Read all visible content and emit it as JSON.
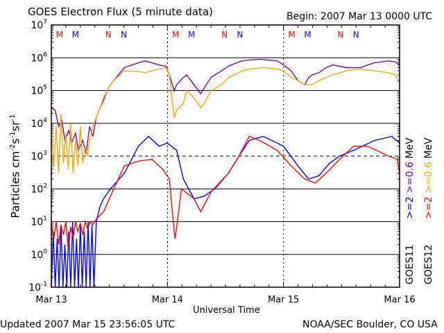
{
  "chart_data": {
    "type": "line",
    "title": "GOES Electron Flux (5 minute data)",
    "begin_label": "Begin: 2007 Mar 13 0000 UTC",
    "xlabel": "Universal Time",
    "ylabel": "Particles cm-2s-1sr-1",
    "ylabel_parts": {
      "a": "Particles cm",
      "b": "-2",
      "c": "s",
      "d": "-1",
      "e": "sr",
      "f": "-1"
    },
    "x_unit": "hours since 2007 Mar 13 00:00 UTC",
    "xlim": [
      0,
      72
    ],
    "ylim": [
      0.1,
      10000000
    ],
    "yscale": "log",
    "x_ticks": [
      {
        "x": 0,
        "label": "Mar 13"
      },
      {
        "x": 24,
        "label": "Mar 14"
      },
      {
        "x": 48,
        "label": "Mar 15"
      },
      {
        "x": 72,
        "label": "Mar 16"
      }
    ],
    "y_ticks": [
      {
        "exp": 7,
        "base": "10",
        "sup": "7"
      },
      {
        "exp": 6,
        "base": "10",
        "sup": "6"
      },
      {
        "exp": 5,
        "base": "10",
        "sup": "5"
      },
      {
        "exp": 4,
        "base": "10",
        "sup": "4"
      },
      {
        "exp": 3,
        "base": "10",
        "sup": "3"
      },
      {
        "exp": 2,
        "base": "10",
        "sup": "2"
      },
      {
        "exp": 1,
        "base": "10",
        "sup": "1"
      },
      {
        "exp": 0,
        "base": "10",
        "sup": "0"
      },
      {
        "exp": -1,
        "base": "10",
        "sup": "-1"
      }
    ],
    "threshold": 1000,
    "grid": "horizontal lines at each decade; dashed at 10^3",
    "annotations": [
      {
        "x": 1.7,
        "label": "M",
        "color": "#ff0000"
      },
      {
        "x": 5.0,
        "label": "M",
        "color": "#0000ff"
      },
      {
        "x": 11.8,
        "label": "N",
        "color": "#ff0000"
      },
      {
        "x": 15.0,
        "label": "N",
        "color": "#0000ff"
      },
      {
        "x": 25.7,
        "label": "M",
        "color": "#ff0000"
      },
      {
        "x": 29.0,
        "label": "M",
        "color": "#0000ff"
      },
      {
        "x": 35.8,
        "label": "N",
        "color": "#ff0000"
      },
      {
        "x": 39.0,
        "label": "N",
        "color": "#0000ff"
      },
      {
        "x": 49.7,
        "label": "M",
        "color": "#ff0000"
      },
      {
        "x": 53.0,
        "label": "M",
        "color": "#0000ff"
      },
      {
        "x": 59.8,
        "label": "N",
        "color": "#ff0000"
      },
      {
        "x": 63.0,
        "label": "N",
        "color": "#0000ff"
      }
    ],
    "legend": {
      "placement": "right",
      "goes11_label": "GOES11",
      "goes12_label": "GOES12",
      "goes11_ge2": ">=2",
      "goes11_ge06": ">=0.6",
      "goes12_ge2": ">=2",
      "goes12_ge06": ">=0.6",
      "unit": "MeV"
    },
    "series": [
      {
        "name": "GOES11 >=0.6 MeV",
        "color": "#6a0dad",
        "x": [
          0,
          0.8,
          1.5,
          2.2,
          2.8,
          3.6,
          4.2,
          5,
          5.6,
          6.5,
          7.2,
          7.9,
          8.6,
          9.3,
          10.1,
          10.8,
          11.5,
          12.2,
          12.9,
          15.1,
          18,
          19.4,
          20.8,
          22.3,
          23.7,
          24.4,
          25.4,
          25.9,
          27.3,
          28,
          29.5,
          30.9,
          31.6,
          33,
          33.8,
          35.2,
          36.6,
          38.8,
          39.5,
          40.9,
          43.1,
          43.8,
          46.7,
          48,
          49.6,
          51,
          52.4,
          53.2,
          53.9,
          55.3,
          56.8,
          58.2,
          59.6,
          61.1,
          63.9,
          65.4,
          66.8,
          69.7,
          71.1,
          72
        ],
        "y": [
          30000,
          25000,
          8000,
          12000,
          3000,
          6000,
          2500,
          5000,
          1500,
          3000,
          1200,
          8000,
          4000,
          15000,
          30000,
          50000,
          100000,
          150000,
          200000,
          500000,
          700000,
          800000,
          700000,
          600000,
          550000,
          300000,
          100000,
          150000,
          250000,
          300000,
          150000,
          80000,
          120000,
          250000,
          300000,
          400000,
          550000,
          750000,
          800000,
          850000,
          900000,
          880000,
          800000,
          600000,
          400000,
          200000,
          150000,
          250000,
          300000,
          350000,
          500000,
          600000,
          550000,
          500000,
          500000,
          600000,
          700000,
          800000,
          750000,
          600000
        ]
      },
      {
        "name": "GOES12 >=0.6 MeV",
        "color": "#ffa500",
        "x": [
          0,
          0.5,
          1,
          1.5,
          2,
          2.5,
          3,
          3.5,
          4,
          4.5,
          5,
          5.5,
          6,
          6.5,
          7,
          7.5,
          7.9,
          8.6,
          9.3,
          10.1,
          10.8,
          11.5,
          12.2,
          12.9,
          15.1,
          18,
          19.4,
          20.8,
          22.3,
          23.7,
          24.4,
          25.4,
          25.9,
          27.3,
          28,
          29.5,
          30.9,
          31.6,
          33,
          35.2,
          36.6,
          38.8,
          39.5,
          40.9,
          43.8,
          46.7,
          48,
          49.6,
          51,
          52.4,
          53.9,
          55.3,
          56.8,
          58.2,
          61.1,
          63.9,
          66.8,
          69.7,
          71.1,
          72
        ],
        "y": [
          10000,
          500,
          8000,
          300,
          20000,
          600,
          5000,
          400,
          10000,
          300,
          3000,
          500,
          8000,
          600,
          2000,
          1000,
          3000,
          8000,
          15000,
          30000,
          60000,
          100000,
          150000,
          200000,
          400000,
          380000,
          350000,
          400000,
          450000,
          500000,
          300000,
          15000,
          25000,
          40000,
          100000,
          60000,
          30000,
          40000,
          100000,
          150000,
          250000,
          350000,
          400000,
          450000,
          500000,
          450000,
          400000,
          250000,
          200000,
          150000,
          150000,
          200000,
          250000,
          300000,
          400000,
          450000,
          400000,
          350000,
          300000,
          200000
        ]
      },
      {
        "name": "GOES11 >=2 MeV",
        "color": "#0000ff",
        "x": [
          0,
          0.4,
          0.8,
          1.2,
          1.6,
          2,
          2.4,
          2.8,
          3.2,
          3.6,
          4,
          4.4,
          4.8,
          5.2,
          5.6,
          6,
          6.4,
          6.8,
          7.2,
          7.6,
          8,
          8.4,
          8.8,
          9.3,
          10.1,
          10.8,
          12.2,
          15.1,
          18,
          20.1,
          22.3,
          24,
          25.9,
          27.3,
          29.5,
          31.6,
          33.8,
          36.6,
          38.8,
          40.9,
          43.8,
          48,
          51,
          53.2,
          55.3,
          57.5,
          59.6,
          62.5,
          66.8,
          70.4,
          72
        ],
        "y": [
          0.1,
          5,
          0.1,
          3,
          0.1,
          8,
          0.1,
          2,
          0.1,
          5,
          0.1,
          10,
          0.1,
          3,
          0.1,
          8,
          0.1,
          5,
          0.1,
          10,
          0.1,
          8,
          0.1,
          10,
          30,
          50,
          100,
          300,
          2000,
          4000,
          2000,
          2500,
          1500,
          200,
          50,
          60,
          100,
          300,
          1000,
          3000,
          4000,
          2000,
          500,
          200,
          250,
          600,
          1000,
          1500,
          3000,
          4000,
          2500
        ]
      },
      {
        "name": "GOES12 >=2 MeV",
        "color": "#ff0000",
        "x": [
          0,
          0.5,
          1,
          1.5,
          2,
          2.5,
          3,
          3.5,
          4,
          4.5,
          5,
          5.5,
          6,
          6.5,
          7,
          7.5,
          8,
          8.6,
          9.3,
          10.8,
          12.9,
          15.1,
          18,
          20.8,
          23,
          24.4,
          25.4,
          25.6,
          26.9,
          29.5,
          30.9,
          33,
          36.6,
          38.8,
          40.9,
          43.1,
          46.7,
          49.6,
          52.4,
          54.6,
          56.8,
          59.6,
          62.5,
          65.4,
          69.7,
          71.5,
          72
        ],
        "y": [
          8,
          3,
          10,
          2,
          8,
          4,
          10,
          1.5,
          7,
          3,
          10,
          5,
          9,
          4,
          10,
          6,
          10,
          8,
          12,
          20,
          100,
          500,
          700,
          800,
          400,
          200,
          5,
          3,
          100,
          50,
          20,
          80,
          300,
          1000,
          4000,
          3000,
          1500,
          500,
          200,
          150,
          300,
          800,
          2000,
          2000,
          1000,
          800,
          300
        ]
      }
    ]
  },
  "footer": {
    "updated": "Updated 2007 Mar 15 23:56:05 UTC",
    "credit": "NOAA/SEC Boulder, CO USA"
  }
}
